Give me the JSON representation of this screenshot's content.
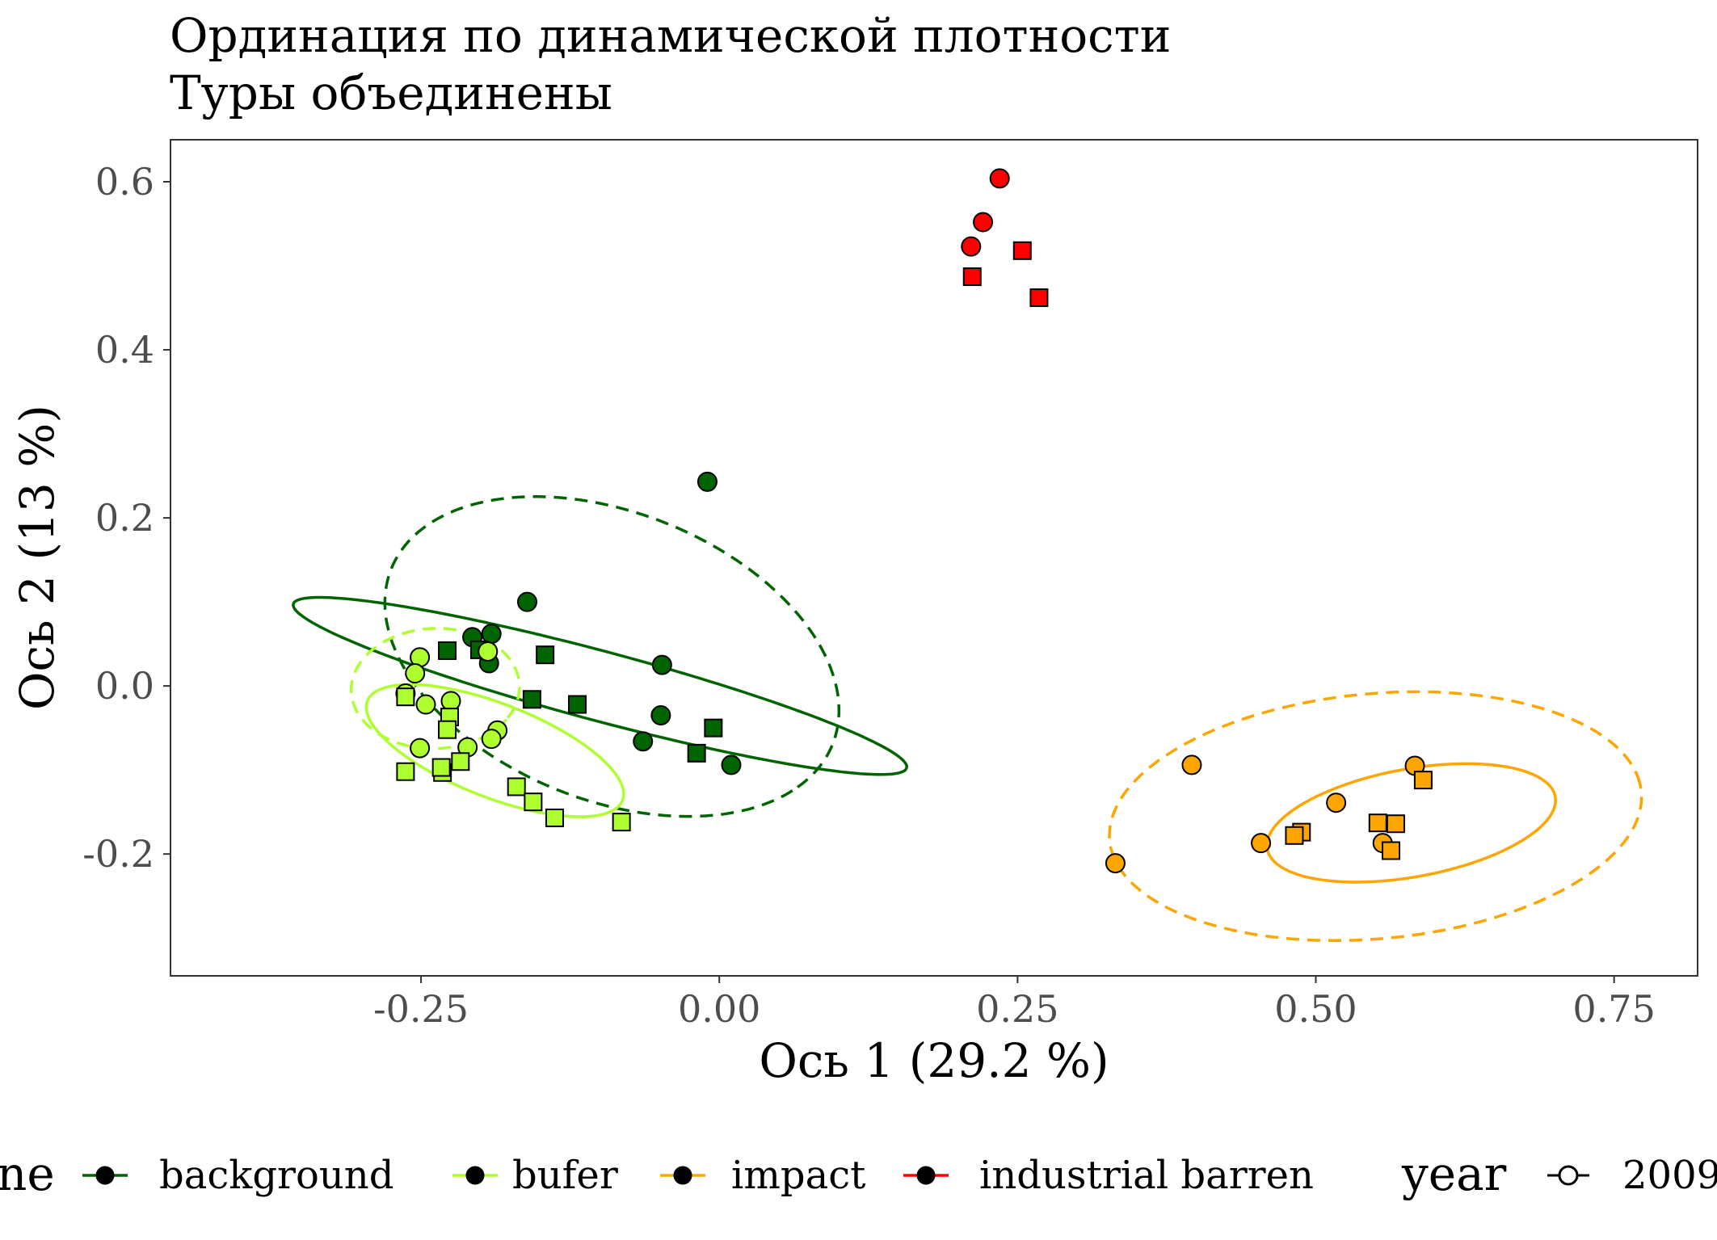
{
  "chart_data": {
    "type": "scatter",
    "title": "Ординация по динамической плотности",
    "subtitle": "Туры объединены",
    "xlabel": "Ось 1 (29.2 %)",
    "ylabel": "Ось 2 (13 %)",
    "xlim": [
      -0.46,
      0.82
    ],
    "ylim": [
      -0.345,
      0.65
    ],
    "xticks": [
      -0.25,
      0.0,
      0.25,
      0.5,
      0.75
    ],
    "xtick_labels": [
      "-0.25",
      "0.00",
      "0.25",
      "0.50",
      "0.75"
    ],
    "yticks": [
      -0.2,
      0.0,
      0.2,
      0.4,
      0.6
    ],
    "ytick_labels": [
      "-0.2",
      "0.0",
      "0.2",
      "0.4",
      "0.6"
    ],
    "grid": false,
    "legend": {
      "position": "bottom",
      "groups": [
        {
          "title": "zone",
          "visible_title": "ne",
          "entries": [
            {
              "label": "background",
              "color": "#006400"
            },
            {
              "label": "bufer",
              "color": "#adff2f"
            },
            {
              "label": "impact",
              "color": "#ffa500"
            },
            {
              "label": "industrial barren",
              "color": "#ff0000"
            }
          ]
        },
        {
          "title": "year",
          "entries": [
            {
              "label": "2009",
              "marker": "circle"
            }
          ]
        }
      ]
    },
    "colors": {
      "background": "#006400",
      "bufer": "#adff2f",
      "impact": "#ffa500",
      "industrial barren": "#ff0000"
    },
    "series": [
      {
        "zone": "background",
        "marker": "circle",
        "points": [
          [
            -0.01,
            0.243
          ],
          [
            -0.161,
            0.1
          ],
          [
            -0.207,
            0.058
          ],
          [
            -0.191,
            0.062
          ],
          [
            -0.193,
            0.027
          ],
          [
            -0.048,
            0.025
          ],
          [
            -0.049,
            -0.035
          ],
          [
            -0.064,
            -0.066
          ],
          [
            0.01,
            -0.094
          ]
        ]
      },
      {
        "zone": "background",
        "marker": "square",
        "points": [
          [
            -0.228,
            0.042
          ],
          [
            -0.146,
            0.037
          ],
          [
            -0.201,
            0.043
          ],
          [
            -0.157,
            -0.016
          ],
          [
            -0.119,
            -0.022
          ],
          [
            -0.005,
            -0.05
          ],
          [
            -0.019,
            -0.08
          ]
        ]
      },
      {
        "zone": "bufer",
        "marker": "circle",
        "points": [
          [
            -0.251,
            0.034
          ],
          [
            -0.255,
            0.015
          ],
          [
            -0.194,
            0.041
          ],
          [
            -0.263,
            -0.009
          ],
          [
            -0.246,
            -0.022
          ],
          [
            -0.225,
            -0.018
          ],
          [
            -0.186,
            -0.053
          ],
          [
            -0.191,
            -0.063
          ],
          [
            -0.251,
            -0.074
          ],
          [
            -0.211,
            -0.073
          ]
        ]
      },
      {
        "zone": "bufer",
        "marker": "square",
        "points": [
          [
            -0.263,
            -0.013
          ],
          [
            -0.226,
            -0.037
          ],
          [
            -0.228,
            -0.052
          ],
          [
            -0.217,
            -0.09
          ],
          [
            -0.232,
            -0.103
          ],
          [
            -0.233,
            -0.097
          ],
          [
            -0.263,
            -0.102
          ],
          [
            -0.17,
            -0.12
          ],
          [
            -0.156,
            -0.138
          ],
          [
            -0.138,
            -0.157
          ],
          [
            -0.082,
            -0.162
          ]
        ]
      },
      {
        "zone": "impact",
        "marker": "circle",
        "points": [
          [
            0.396,
            -0.094
          ],
          [
            0.517,
            -0.139
          ],
          [
            0.583,
            -0.095
          ],
          [
            0.454,
            -0.187
          ],
          [
            0.332,
            -0.211
          ],
          [
            0.556,
            -0.187
          ]
        ]
      },
      {
        "zone": "impact",
        "marker": "square",
        "points": [
          [
            0.59,
            -0.112
          ],
          [
            0.552,
            -0.163
          ],
          [
            0.567,
            -0.164
          ],
          [
            0.488,
            -0.174
          ],
          [
            0.482,
            -0.178
          ],
          [
            0.563,
            -0.196
          ]
        ]
      },
      {
        "zone": "industrial barren",
        "marker": "circle",
        "points": [
          [
            0.235,
            0.604
          ],
          [
            0.221,
            0.552
          ],
          [
            0.211,
            0.523
          ]
        ]
      },
      {
        "zone": "industrial barren",
        "marker": "square",
        "points": [
          [
            0.254,
            0.518
          ],
          [
            0.212,
            0.487
          ],
          [
            0.268,
            0.462
          ]
        ]
      }
    ],
    "ellipses": [
      {
        "zone": "background",
        "style": "solid",
        "center": [
          -0.1,
          0.0
        ],
        "semi_axes": [
          0.275,
          0.04
        ],
        "angle_deg": -21
      },
      {
        "zone": "background",
        "style": "dashed",
        "center": [
          -0.09,
          0.035
        ],
        "semi_axes": [
          0.22,
          0.155
        ],
        "angle_deg": -45
      },
      {
        "zone": "bufer",
        "style": "solid",
        "center": [
          -0.188,
          -0.077
        ],
        "semi_axes": [
          0.123,
          0.052
        ],
        "angle_deg": -32
      },
      {
        "zone": "bufer",
        "style": "dashed",
        "center": [
          -0.238,
          -0.003
        ],
        "semi_axes": [
          0.07,
          0.072
        ],
        "angle_deg": -30
      },
      {
        "zone": "impact",
        "style": "solid",
        "center": [
          0.58,
          -0.163
        ],
        "semi_axes": [
          0.125,
          0.063
        ],
        "angle_deg": 17
      },
      {
        "zone": "impact",
        "style": "dashed",
        "center": [
          0.55,
          -0.155
        ],
        "semi_axes": [
          0.225,
          0.145
        ],
        "angle_deg": 10
      }
    ]
  }
}
